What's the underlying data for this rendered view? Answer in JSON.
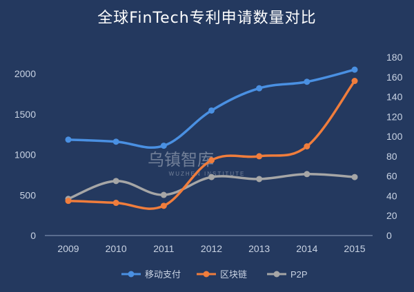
{
  "chart_data": {
    "type": "line",
    "title": "全球FinTech专利申请数量对比",
    "categories": [
      "2009",
      "2010",
      "2011",
      "2012",
      "2013",
      "2014",
      "2015"
    ],
    "series": [
      {
        "name": "移动支付",
        "axis": "left",
        "color": "#4a90e2",
        "values": [
          1185,
          1160,
          1110,
          1545,
          1820,
          1900,
          2050
        ]
      },
      {
        "name": "区块链",
        "axis": "right",
        "color": "#f07d3c",
        "values": [
          35,
          33,
          30,
          76,
          80,
          90,
          156
        ]
      },
      {
        "name": "P2P",
        "axis": "right",
        "color": "#a6a6a6",
        "values": [
          37,
          55,
          41,
          59,
          57,
          62,
          59
        ]
      }
    ],
    "y_left": {
      "min": 0,
      "max": 2000,
      "ticks": [
        0,
        500,
        1000,
        1500,
        2000
      ]
    },
    "y_right": {
      "min": 0,
      "max": 180,
      "ticks": [
        0,
        20,
        40,
        60,
        80,
        100,
        120,
        140,
        160,
        180
      ]
    },
    "grid": false,
    "legend_position": "bottom"
  },
  "watermark": {
    "text": "乌镇智库",
    "subtext": "WUZHEN INSTITUTE"
  },
  "colors": {
    "background": "#24395f",
    "axis": "#8fa1bf",
    "tick_text": "#c9d3e3"
  }
}
